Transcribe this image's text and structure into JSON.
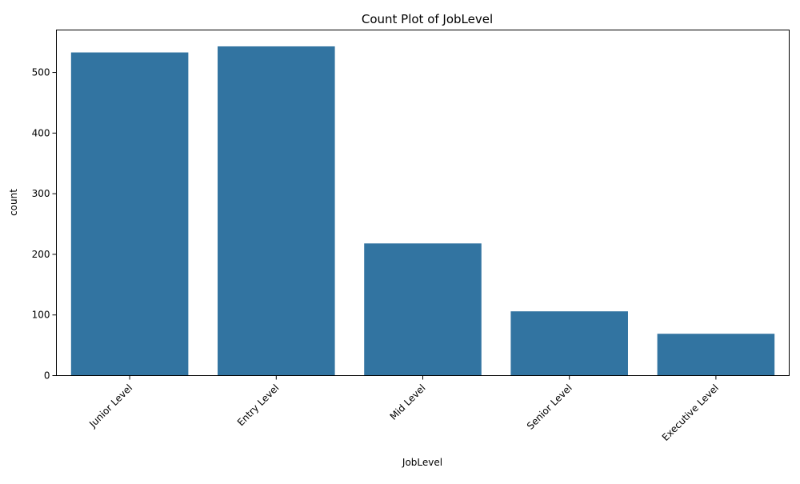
{
  "chart_data": {
    "type": "bar",
    "title": "Count Plot of JobLevel",
    "xlabel": "JobLevel",
    "ylabel": "count",
    "categories": [
      "Junior Level",
      "Entry Level",
      "Mid Level",
      "Senior Level",
      "Executive Level"
    ],
    "values": [
      533,
      543,
      218,
      106,
      69
    ],
    "ylim": [
      0,
      570
    ],
    "yticks": [
      0,
      100,
      200,
      300,
      400,
      500
    ],
    "x_tick_rotation_deg": 45,
    "grid": false,
    "legend": "none",
    "bar_color": "#3274a1"
  }
}
